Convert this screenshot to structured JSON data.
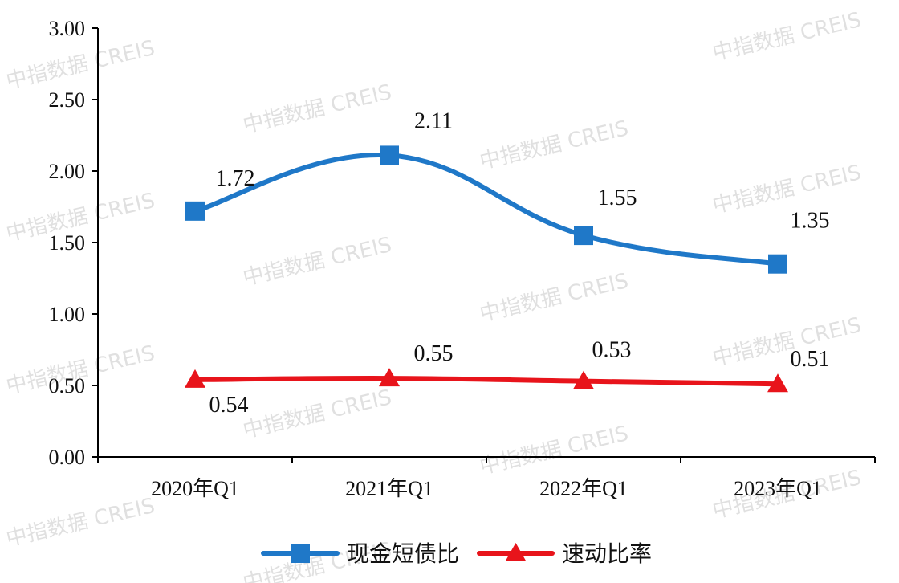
{
  "chart_data": {
    "type": "line",
    "categories": [
      "2020年Q1",
      "2021年Q1",
      "2022年Q1",
      "2023年Q1"
    ],
    "ylim": [
      0,
      3
    ],
    "yticks": [
      "0.00",
      "0.50",
      "1.00",
      "1.50",
      "2.00",
      "2.50",
      "3.00"
    ],
    "smooth": true,
    "grid": false,
    "legend_position": "bottom",
    "series": [
      {
        "name": "现金短债比",
        "color": "#1f78c8",
        "marker": "square",
        "values": [
          1.72,
          2.11,
          1.55,
          1.35
        ],
        "labels": [
          "1.72",
          "2.11",
          "1.55",
          "1.35"
        ]
      },
      {
        "name": "速动比率",
        "color": "#e8141b",
        "marker": "triangle",
        "values": [
          0.54,
          0.55,
          0.53,
          0.51
        ],
        "labels": [
          "0.54",
          "0.55",
          "0.53",
          "0.51"
        ]
      }
    ]
  },
  "watermark": "中指数据 CREIS"
}
